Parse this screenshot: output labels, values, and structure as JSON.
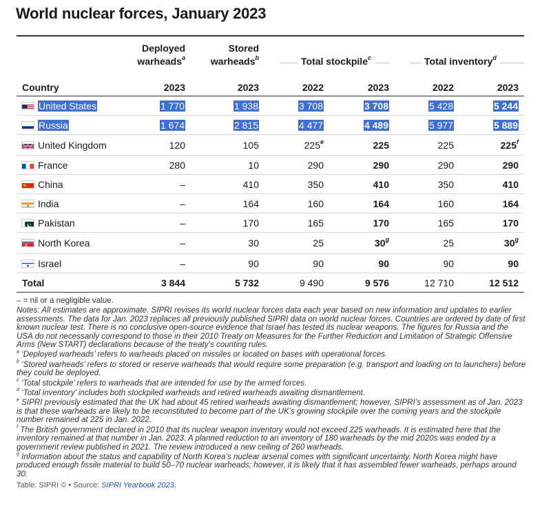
{
  "title": "World nuclear forces, January 2023",
  "columns": {
    "country": "Country",
    "deployed": {
      "line1": "Deployed",
      "line2": "warheads",
      "sup": "a",
      "year": "2023"
    },
    "stored": {
      "line1": "Stored",
      "line2": "warheads",
      "sup": "b",
      "year": "2023"
    },
    "stockpile": {
      "label": "Total stockpile",
      "sup": "c",
      "year1": "2022",
      "year2": "2023"
    },
    "inventory": {
      "label": "Total inventory",
      "sup": "d",
      "year1": "2022",
      "year2": "2023"
    }
  },
  "rows": [
    {
      "country": "United States",
      "flag": "us-flag",
      "deployed": "1 770",
      "stored": "1 938",
      "stock22": "3 708",
      "stock23": "3 708",
      "inv22": "5 428",
      "inv23": "5 244",
      "highlight": true
    },
    {
      "country": "Russia",
      "flag": "russia-flag",
      "deployed": "1 674",
      "stored": "2 815",
      "stock22": "4 477",
      "stock23": "4 489",
      "inv22": "5 977",
      "inv23": "5 889",
      "highlight": true
    },
    {
      "country": "United Kingdom",
      "flag": "uk-flag",
      "deployed": "120",
      "stored": "105",
      "stock22": "225",
      "stock22_sup": "e",
      "stock23": "225",
      "inv22": "225",
      "inv23": "225",
      "inv23_sup": "f"
    },
    {
      "country": "France",
      "flag": "france-flag",
      "deployed": "280",
      "stored": "10",
      "stock22": "290",
      "stock23": "290",
      "inv22": "290",
      "inv23": "290"
    },
    {
      "country": "China",
      "flag": "china-flag",
      "deployed": "–",
      "stored": "410",
      "stock22": "350",
      "stock23": "410",
      "inv22": "350",
      "inv23": "410"
    },
    {
      "country": "India",
      "flag": "india-flag",
      "deployed": "–",
      "stored": "164",
      "stock22": "160",
      "stock23": "164",
      "inv22": "160",
      "inv23": "164"
    },
    {
      "country": "Pakistan",
      "flag": "pakistan-flag",
      "deployed": "–",
      "stored": "170",
      "stock22": "165",
      "stock23": "170",
      "inv22": "165",
      "inv23": "170"
    },
    {
      "country": "North Korea",
      "flag": "north-korea-flag",
      "deployed": "–",
      "stored": "30",
      "stock22": "25",
      "stock23": "30",
      "stock23_sup": "g",
      "inv22": "25",
      "inv23": "30",
      "inv23_sup": "g"
    },
    {
      "country": "Israel",
      "flag": "israel-flag",
      "deployed": "–",
      "stored": "90",
      "stock22": "90",
      "stock23": "90",
      "inv22": "90",
      "inv23": "90"
    }
  ],
  "total": {
    "label": "Total",
    "deployed": "3 844",
    "stored": "5 732",
    "stock22": "9 490",
    "stock23": "9 576",
    "inv22": "12 710",
    "inv23": "12 512"
  },
  "notes": {
    "nil": "– = nil or a negligible value.",
    "general": "Notes: All estimates are approximate. SIPRI revises its world nuclear forces data each year based on new information and updates to earlier assessments. The data for Jan. 2023 replaces all previously published SIPRI data on world nuclear forces. Countries are ordered by date of first known nuclear test. There is no conclusive open-source evidence that Israel has tested its nuclear weapons. The figures for Russia and the USA do not necessarily correspond to those in their 2010 Treaty on Measures for the Further Reduction and Limitation of Strategic Offensive Arms (New START) declarations because of the treaty’s counting rules.",
    "a": "‘Deployed warheads’ refers to warheads placed on missiles or located on bases with operational forces.",
    "b": "‘Stored warheads’ refers to stored or reserve warheads that would require some preparation (e.g. transport and loading on to launchers) before they could be deployed.",
    "c": "‘Total stockpile’ refers to warheads that are intended for use by the armed forces.",
    "d": "‘Total inventory’ includes both stockpiled warheads and retired warheads awaiting dismantlement.",
    "e": "SIPRI previously estimated that the UK had about 45 retired warheads awaiting dismantlement; however, SIPRI’s assessment as of Jan. 2023 is that these warheads are likely to be reconstituted to become part of the UK’s growing stockpile over the coming years and the stockpile number remained at 225 in Jan. 2022.",
    "f": "The British government declared in 2010 that its nuclear weapon inventory would not exceed 225 warheads. It is estimated here that the inventory remained at that number in Jan. 2023. A planned reduction to an inventory of 180 warheads by the mid 2020s was ended by a government review published in 2021. The review introduced a new ceiling of 260 warheads.",
    "g": "Information about the status and capability of North Korea’s nuclear arsenal comes with significant uncertainty. North Korea might have produced enough fissile material to build 50–70 nuclear warheads; however, it is likely that it has assembled fewer warheads, perhaps around 30."
  },
  "source": {
    "prefix": "Table: SIPRI © • Source: ",
    "link": "SIPRI Yearbook 2023",
    "suffix": "."
  },
  "colors": {
    "highlight": "#3d6fd6",
    "rule": "#333333"
  }
}
